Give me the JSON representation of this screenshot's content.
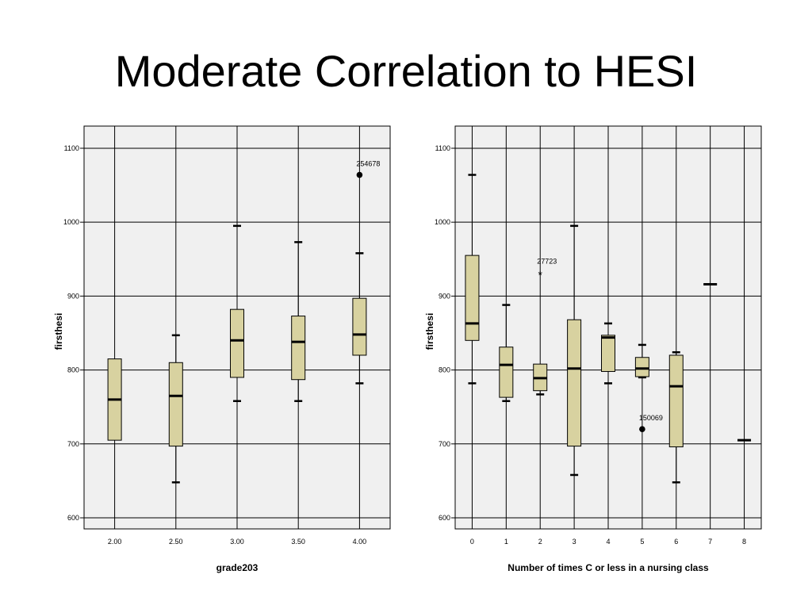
{
  "slide": {
    "title": "Moderate Correlation to HESI"
  },
  "chart_data": [
    {
      "type": "boxplot",
      "xlabel": "grade203",
      "ylabel": "firsthesi",
      "ylim": [
        585,
        1130
      ],
      "yticks": [
        "600",
        "700",
        "800",
        "900",
        "1000",
        "1100"
      ],
      "grid": true,
      "categories": [
        "2.00",
        "2.50",
        "3.00",
        "3.50",
        "4.00"
      ],
      "boxes": [
        {
          "min": 705,
          "q1": 705,
          "median": 760,
          "q3": 815,
          "max": 815
        },
        {
          "min": 648,
          "q1": 697,
          "median": 765,
          "q3": 810,
          "max": 847
        },
        {
          "min": 758,
          "q1": 790,
          "median": 840,
          "q3": 882,
          "max": 995
        },
        {
          "min": 758,
          "q1": 787,
          "median": 838,
          "q3": 873,
          "max": 973
        },
        {
          "min": 782,
          "q1": 820,
          "median": 848,
          "q3": 897,
          "max": 958
        }
      ],
      "outliers": [
        {
          "category": "4.00",
          "value": 1064,
          "label": "254678",
          "symbol": "circle"
        }
      ],
      "colors": {
        "box": "#d8d2a0",
        "background": "#f0f0f0"
      }
    },
    {
      "type": "boxplot",
      "xlabel": "Number of times C or less in a nursing class",
      "ylabel": "firsthesi",
      "ylim": [
        585,
        1130
      ],
      "yticks": [
        "600",
        "700",
        "800",
        "900",
        "1000",
        "1100"
      ],
      "grid": true,
      "categories": [
        "0",
        "1",
        "2",
        "3",
        "4",
        "5",
        "6",
        "7",
        "8"
      ],
      "boxes": [
        {
          "min": 782,
          "q1": 840,
          "median": 863,
          "q3": 955,
          "max": 1064
        },
        {
          "min": 758,
          "q1": 763,
          "median": 807,
          "q3": 831,
          "max": 888
        },
        {
          "min": 767,
          "q1": 772,
          "median": 789,
          "q3": 808,
          "max": 808
        },
        {
          "min": 658,
          "q1": 697,
          "median": 802,
          "q3": 868,
          "max": 995
        },
        {
          "min": 782,
          "q1": 798,
          "median": 844,
          "q3": 847,
          "max": 863
        },
        {
          "min": 790,
          "q1": 791,
          "median": 802,
          "q3": 817,
          "max": 834
        },
        {
          "min": 648,
          "q1": 696,
          "median": 778,
          "q3": 820,
          "max": 824
        },
        {
          "min": 916,
          "q1": 916,
          "median": 916,
          "q3": 916,
          "max": 916
        },
        {
          "min": 705,
          "q1": 705,
          "median": 705,
          "q3": 705,
          "max": 705
        }
      ],
      "outliers": [
        {
          "category": "2",
          "value": 932,
          "label": "27723",
          "symbol": "star"
        },
        {
          "category": "5",
          "value": 720,
          "label": "150069",
          "symbol": "circle"
        }
      ],
      "colors": {
        "box": "#d8d2a0",
        "background": "#f0f0f0"
      }
    }
  ]
}
